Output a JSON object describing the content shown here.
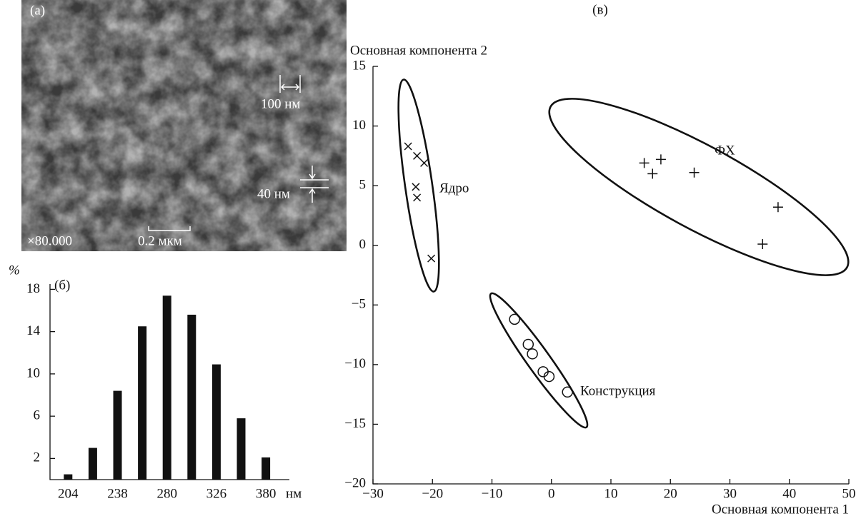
{
  "micrograph": {
    "panel": "(а)",
    "scale_100": "100 нм",
    "scale_40": "40 нм",
    "magnification": "×80.000",
    "scale_bar": "0.2 мкм"
  },
  "chart_data": [
    {
      "type": "bar",
      "panel": "(б)",
      "ylabel": "%",
      "xunit": "нм",
      "categories": [
        "204",
        null,
        "238",
        null,
        "280",
        null,
        "326",
        null,
        "380"
      ],
      "values": [
        0.5,
        3,
        8.4,
        14.5,
        17.4,
        15.6,
        10.9,
        5.8,
        2.1
      ],
      "color": "#111111",
      "ylim": [
        0,
        18.5
      ],
      "yticks": [
        2,
        6,
        10,
        14,
        18
      ]
    },
    {
      "type": "scatter",
      "panel": "(в)",
      "xlabel": "Основная компонента 1",
      "ylabel": "Основная компонента 2",
      "xlim": [
        -30,
        50
      ],
      "ylim": [
        -20,
        15
      ],
      "xticks": [
        {
          "value": -30,
          "label": "−30"
        },
        {
          "value": -20,
          "label": "−20"
        },
        {
          "value": -10,
          "label": "−10"
        },
        0,
        10,
        20,
        30,
        40,
        50
      ],
      "yticks": [
        {
          "value": -20,
          "label": "−20"
        },
        {
          "value": -15,
          "label": "−15"
        },
        {
          "value": -10,
          "label": "−10"
        },
        {
          "value": -5,
          "label": "−5"
        },
        0,
        5,
        10,
        15
      ],
      "series": [
        {
          "name": "Ядро",
          "marker": "x",
          "color": "#111111",
          "x": [
            -24.1,
            -22.6,
            -21.4,
            -22.8,
            -22.6,
            -20.2
          ],
          "values": [
            8.3,
            7.5,
            6.9,
            4.9,
            4.0,
            -1.1
          ]
        },
        {
          "name": "ФХ",
          "marker": "+",
          "color": "#111111",
          "x": [
            15.6,
            17.0,
            18.4,
            24.0,
            38.1,
            35.5
          ],
          "values": [
            6.9,
            6.0,
            7.2,
            6.1,
            3.2,
            0.1
          ]
        },
        {
          "name": "Конструкция",
          "marker": "o",
          "color": "#111111",
          "x": [
            -6.2,
            -3.9,
            -3.2,
            -1.4,
            -0.4,
            2.7
          ],
          "values": [
            -6.2,
            -8.3,
            -9.1,
            -10.6,
            -11.0,
            -12.3
          ]
        }
      ]
    }
  ]
}
